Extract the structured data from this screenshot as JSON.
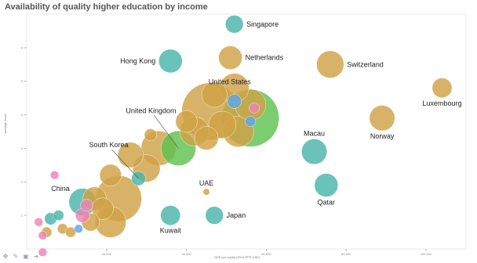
{
  "chart_data": {
    "type": "scatter",
    "title": "Availability of quality higher education by income",
    "xlabel": "GDP per capita (2014 PPP USD)",
    "ylabel": "average score",
    "xlim": [
      0,
      110000
    ],
    "ylim": [
      0,
      7
    ],
    "x_ticks": [
      20000,
      40000,
      60000,
      80000,
      100000
    ],
    "x_tick_labels": [
      "20,000",
      "40,000",
      "60,000",
      "80,000",
      "100,000"
    ],
    "y_ticks": [
      1,
      2,
      3,
      4,
      5,
      6
    ],
    "y_tick_labels": [
      "1",
      "2",
      "3",
      "4",
      "5",
      "6"
    ],
    "colors": {
      "gold": "#cfa245",
      "teal": "#4bb5a8",
      "green": "#5ec24f",
      "blue": "#5aa6e8",
      "pink": "#ee82b4"
    },
    "labeled_points": [
      {
        "label": "Singapore",
        "x": 52000,
        "y": 6.7,
        "size": 7,
        "color": "teal"
      },
      {
        "label": "Hong Kong",
        "x": 36000,
        "y": 5.6,
        "size": 10,
        "color": "teal"
      },
      {
        "label": "Netherlands",
        "x": 51000,
        "y": 5.7,
        "size": 10,
        "color": "gold"
      },
      {
        "label": "Switzerland",
        "x": 76000,
        "y": 5.5,
        "size": 12,
        "color": "gold"
      },
      {
        "label": "Luxembourg",
        "x": 104000,
        "y": 4.8,
        "size": 8,
        "color": "gold"
      },
      {
        "label": "United States",
        "x": 52000,
        "y": 4.4,
        "size": 5,
        "color": "blue"
      },
      {
        "label": "United Kingdom",
        "x": 38000,
        "y": 3.0,
        "size": 16,
        "color": "green"
      },
      {
        "label": "South Korea",
        "x": 28000,
        "y": 2.1,
        "size": 5,
        "color": "teal"
      },
      {
        "label": "Norway",
        "x": 89000,
        "y": 3.9,
        "size": 11,
        "color": "gold"
      },
      {
        "label": "Macau",
        "x": 72000,
        "y": 2.9,
        "size": 11,
        "color": "teal"
      },
      {
        "label": "Qatar",
        "x": 75000,
        "y": 1.9,
        "size": 10,
        "color": "teal"
      },
      {
        "label": "UAE",
        "x": 45000,
        "y": 1.7,
        "size": 1,
        "color": "gold"
      },
      {
        "label": "Japan",
        "x": 47000,
        "y": 1.0,
        "size": 7,
        "color": "teal"
      },
      {
        "label": "Kuwait",
        "x": 36000,
        "y": 1.0,
        "size": 8,
        "color": "teal"
      },
      {
        "label": "China",
        "x": 14000,
        "y": 1.4,
        "size": 12,
        "color": "teal"
      }
    ],
    "other_points": [
      {
        "x": 56000,
        "y": 3.9,
        "size": 28,
        "color": "green"
      },
      {
        "x": 46000,
        "y": 4.1,
        "size": 28,
        "color": "gold"
      },
      {
        "x": 53000,
        "y": 3.5,
        "size": 14,
        "color": "gold"
      },
      {
        "x": 56000,
        "y": 4.3,
        "size": 14,
        "color": "gold"
      },
      {
        "x": 47000,
        "y": 4.6,
        "size": 11,
        "color": "gold"
      },
      {
        "x": 52000,
        "y": 4.8,
        "size": 13,
        "color": "gold"
      },
      {
        "x": 42000,
        "y": 3.5,
        "size": 13,
        "color": "gold"
      },
      {
        "x": 49000,
        "y": 3.7,
        "size": 12,
        "color": "gold"
      },
      {
        "x": 45000,
        "y": 3.3,
        "size": 10,
        "color": "gold"
      },
      {
        "x": 40000,
        "y": 3.8,
        "size": 9,
        "color": "gold"
      },
      {
        "x": 33000,
        "y": 3.0,
        "size": 16,
        "color": "gold"
      },
      {
        "x": 30000,
        "y": 2.4,
        "size": 12,
        "color": "gold"
      },
      {
        "x": 23000,
        "y": 1.5,
        "size": 22,
        "color": "gold"
      },
      {
        "x": 21000,
        "y": 2.2,
        "size": 9,
        "color": "gold"
      },
      {
        "x": 26000,
        "y": 2.8,
        "size": 11,
        "color": "gold"
      },
      {
        "x": 17000,
        "y": 1.5,
        "size": 10,
        "color": "gold"
      },
      {
        "x": 21000,
        "y": 0.8,
        "size": 14,
        "color": "gold"
      },
      {
        "x": 19000,
        "y": 1.2,
        "size": 9,
        "color": "gold"
      },
      {
        "x": 16000,
        "y": 0.8,
        "size": 7,
        "color": "gold"
      },
      {
        "x": 31000,
        "y": 3.4,
        "size": 4,
        "color": "gold"
      },
      {
        "x": 56000,
        "y": 3.8,
        "size": 3,
        "color": "blue"
      },
      {
        "x": 57000,
        "y": 4.2,
        "size": 3,
        "color": "pink"
      },
      {
        "x": 6000,
        "y": 0.9,
        "size": 4,
        "color": "teal"
      },
      {
        "x": 5000,
        "y": 0.5,
        "size": 3,
        "color": "gold"
      },
      {
        "x": 9000,
        "y": 0.6,
        "size": 3,
        "color": "gold"
      },
      {
        "x": 11000,
        "y": 0.5,
        "size": 3,
        "color": "gold"
      },
      {
        "x": 8000,
        "y": 1.0,
        "size": 3,
        "color": "teal"
      },
      {
        "x": 13000,
        "y": 0.6,
        "size": 2,
        "color": "blue"
      },
      {
        "x": 14000,
        "y": 1.0,
        "size": 5,
        "color": "pink"
      },
      {
        "x": 15000,
        "y": 1.3,
        "size": 4,
        "color": "pink"
      },
      {
        "x": 7000,
        "y": 2.2,
        "size": 2,
        "color": "pink"
      },
      {
        "x": 4000,
        "y": 0.4,
        "size": 2,
        "color": "pink"
      },
      {
        "x": 4000,
        "y": -0.1,
        "size": 2,
        "color": "pink"
      },
      {
        "x": 3000,
        "y": 0.8,
        "size": 2,
        "color": "pink"
      }
    ]
  },
  "toolbar": {
    "icons": [
      "move-icon",
      "edit-icon",
      "save-icon",
      "forward-icon"
    ]
  }
}
